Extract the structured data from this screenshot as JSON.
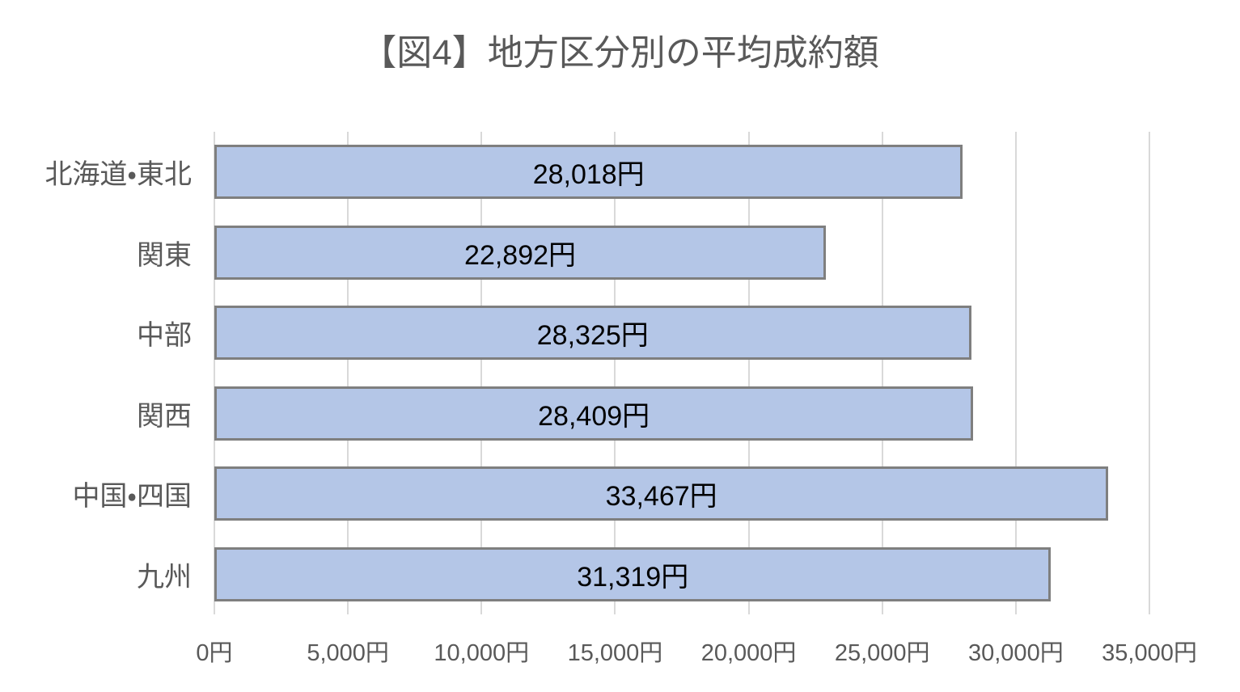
{
  "chart_data": {
    "type": "bar",
    "orientation": "horizontal",
    "title": "【図4】地方区分別の平均成約額",
    "categories": [
      "北海道・東北",
      "関東",
      "中部",
      "関西",
      "中国・四国",
      "九州"
    ],
    "values": [
      28018,
      22892,
      28325,
      28409,
      33467,
      31319
    ],
    "data_labels": [
      "28,018円",
      "22,892円",
      "28,325円",
      "28,409円",
      "33,467円",
      "31,319円"
    ],
    "x_ticks": [
      0,
      5000,
      10000,
      15000,
      20000,
      25000,
      30000,
      35000
    ],
    "x_tick_labels": [
      "0円",
      "5,000円",
      "10,000円",
      "15,000円",
      "20,000円",
      "25,000円",
      "30,000円",
      "35,000円"
    ],
    "xlim": [
      0,
      35000
    ],
    "unit": "円",
    "grid": "vertical-only",
    "legend": "none",
    "colors": {
      "bar_fill": "#B4C6E7",
      "bar_border": "#7F7F7F",
      "gridline": "#D9D9D9",
      "axis_text": "#595959",
      "data_label_text": "#000000",
      "background": "#FFFFFF"
    }
  }
}
